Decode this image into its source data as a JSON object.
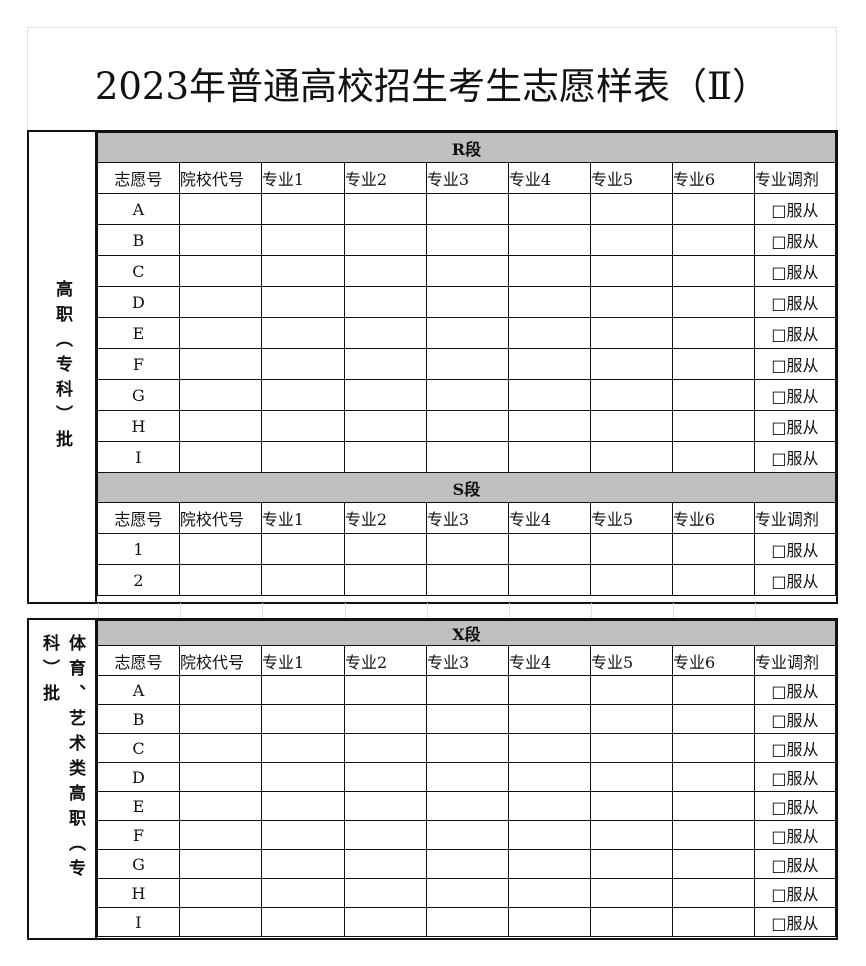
{
  "title": "2023年普通高校招生考生志愿样表（Ⅱ）",
  "columns": [
    "志愿号",
    "院校代号",
    "专业1",
    "专业2",
    "专业3",
    "专业4",
    "专业5",
    "专业6",
    "专业调剂"
  ],
  "checkbox_label": "□服从",
  "section1": {
    "side_label": "高职（专科）批",
    "bands": [
      {
        "label": "R段",
        "rows": [
          "A",
          "B",
          "C",
          "D",
          "E",
          "F",
          "G",
          "H",
          "I"
        ]
      },
      {
        "label": "S段",
        "rows": [
          "1",
          "2"
        ]
      }
    ]
  },
  "section2": {
    "side_label": "体育、艺术类高职（专科）批",
    "bands": [
      {
        "label": "X段",
        "rows": [
          "A",
          "B",
          "C",
          "D",
          "E",
          "F",
          "G",
          "H",
          "I"
        ]
      }
    ]
  },
  "colors": {
    "band": "#c0c0c0",
    "border": "#111111"
  }
}
